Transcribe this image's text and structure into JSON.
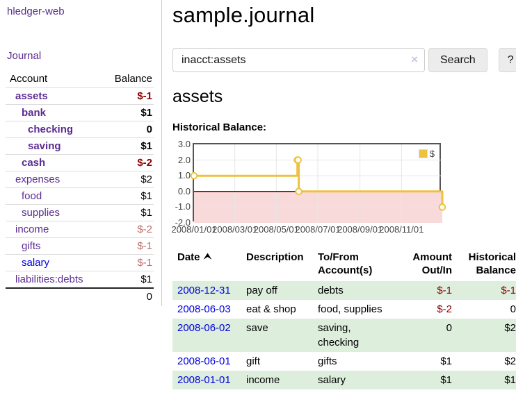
{
  "colors": {
    "accent_purple": "#5b2d91",
    "link_blue": "#0000e0",
    "negative_strong": "#8b0000",
    "negative_soft": "#bb6b6b",
    "row_green": "#ddeedd",
    "series_gold": "#edc240"
  },
  "sidebar": {
    "app_title": "hledger-web",
    "nav_journal": "Journal",
    "accounts": {
      "col_account": "Account",
      "col_balance": "Balance",
      "rows": [
        {
          "account": "assets",
          "balance": "$-1",
          "indent": 0,
          "bold": true,
          "link": "purple",
          "balance_class": "neg-strong"
        },
        {
          "account": "bank",
          "balance": "$1",
          "indent": 1,
          "bold": true,
          "link": "purple",
          "balance_class": ""
        },
        {
          "account": "checking",
          "balance": "0",
          "indent": 2,
          "bold": true,
          "link": "purple",
          "balance_class": ""
        },
        {
          "account": "saving",
          "balance": "$1",
          "indent": 2,
          "bold": true,
          "link": "purple",
          "balance_class": ""
        },
        {
          "account": "cash",
          "balance": "$-2",
          "indent": 1,
          "bold": true,
          "link": "purple",
          "balance_class": "neg-strong"
        },
        {
          "account": "expenses",
          "balance": "$2",
          "indent": 0,
          "bold": false,
          "link": "purple",
          "balance_class": ""
        },
        {
          "account": "food",
          "balance": "$1",
          "indent": 1,
          "bold": false,
          "link": "purple",
          "balance_class": ""
        },
        {
          "account": "supplies",
          "balance": "$1",
          "indent": 1,
          "bold": false,
          "link": "purple",
          "balance_class": ""
        },
        {
          "account": "income",
          "balance": "$-2",
          "indent": 0,
          "bold": false,
          "link": "purple",
          "balance_class": "neg-soft"
        },
        {
          "account": "gifts",
          "balance": "$-1",
          "indent": 1,
          "bold": false,
          "link": "purple",
          "balance_class": "neg-soft"
        },
        {
          "account": "salary",
          "balance": "$-1",
          "indent": 1,
          "bold": false,
          "link": "blue",
          "balance_class": "neg-soft"
        },
        {
          "account": "liabilities:debts",
          "balance": "$1",
          "indent": 0,
          "bold": false,
          "link": "purple",
          "balance_class": ""
        }
      ],
      "total": "0"
    }
  },
  "main": {
    "page_title": "sample.journal",
    "search": {
      "value": "inacct:assets",
      "clear_icon": "×",
      "search_button": "Search",
      "help_button": "?"
    },
    "account_heading": "assets",
    "section_label": "Historical Balance:"
  },
  "chart_data": {
    "type": "line",
    "step": true,
    "title": "Historical Balance",
    "series": [
      {
        "name": "$",
        "color": "#edc240",
        "points": [
          [
            "2008-01-01",
            1
          ],
          [
            "2008-06-01",
            2
          ],
          [
            "2008-06-02",
            2
          ],
          [
            "2008-06-03",
            0
          ],
          [
            "2008-12-31",
            -1
          ]
        ]
      }
    ],
    "xlim": [
      "2008-01-01",
      "2008-12-31"
    ],
    "ylim": [
      -2,
      3
    ],
    "y_ticks": [
      "3.0",
      "2.0",
      "1.0",
      "0.0",
      "-1.0",
      "-2.0"
    ],
    "x_ticks": [
      "2008/01/01",
      "2008/03/01",
      "2008/05/01",
      "2008/07/01",
      "2008/09/01",
      "2008/11/01"
    ],
    "grid": true,
    "legend_position": "top-right",
    "negative_region_color": "#f9dada",
    "zero_line_color": "#8b0000",
    "grid_color": "#e6e6e6"
  },
  "register": {
    "columns": [
      "Date",
      "Description",
      "To/From Account(s)",
      "Amount Out/In",
      "Historical Balance"
    ],
    "sort_icon": "sort-ascending-icon",
    "rows": [
      {
        "date": "2008-12-31",
        "description": "pay off",
        "accounts": "debts",
        "amount": "$-1",
        "amount_negative": true,
        "balance": "$-1",
        "balance_negative": true
      },
      {
        "date": "2008-06-03",
        "description": "eat & shop",
        "accounts": "food, supplies",
        "amount": "$-2",
        "amount_negative": true,
        "balance": "0",
        "balance_negative": false
      },
      {
        "date": "2008-06-02",
        "description": "save",
        "accounts": "saving, checking",
        "amount": "0",
        "amount_negative": false,
        "balance": "$2",
        "balance_negative": false
      },
      {
        "date": "2008-06-01",
        "description": "gift",
        "accounts": "gifts",
        "amount": "$1",
        "amount_negative": false,
        "balance": "$2",
        "balance_negative": false
      },
      {
        "date": "2008-01-01",
        "description": "income",
        "accounts": "salary",
        "amount": "$1",
        "amount_negative": false,
        "balance": "$1",
        "balance_negative": false
      }
    ]
  }
}
